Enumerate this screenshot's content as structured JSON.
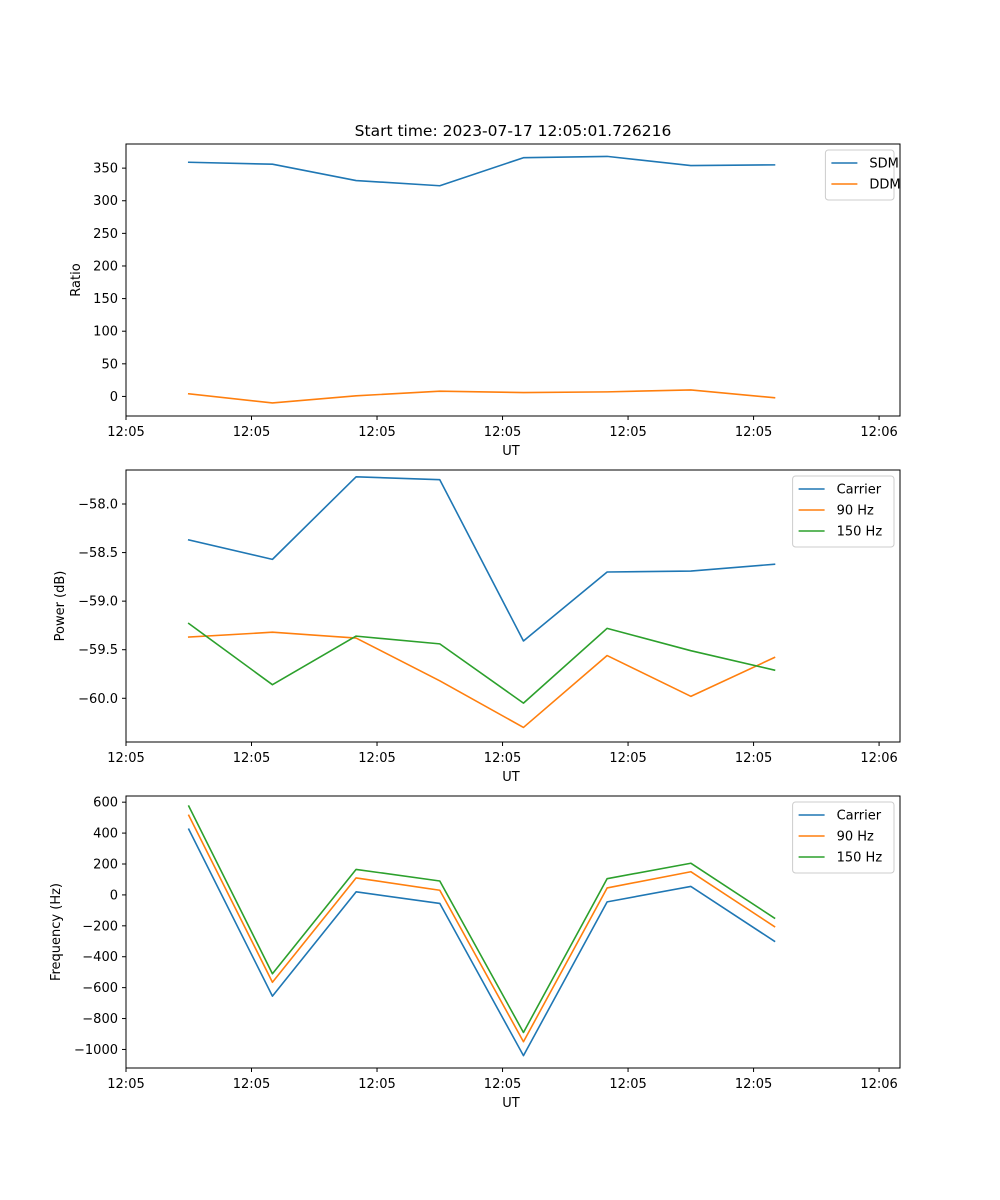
{
  "figure_title": "Start time: 2023-07-17 12:05:01.726216",
  "colors": {
    "c0": "#1f77b4",
    "c1": "#ff7f0e",
    "c2": "#2ca02c"
  },
  "chart_data": [
    {
      "type": "line",
      "title": "Start time: 2023-07-17 12:05:01.726216",
      "xlabel": "UT",
      "ylabel": "Ratio",
      "xlim": [
        -0.75,
        8.5
      ],
      "ylim": [
        -30,
        387
      ],
      "x": [
        0,
        1,
        2,
        3,
        4,
        5,
        6,
        7
      ],
      "xticks": [
        -0.75,
        0.75,
        2.25,
        3.75,
        5.25,
        6.75,
        8.25
      ],
      "xticklabels": [
        "12:05",
        "12:05",
        "12:05",
        "12:05",
        "12:05",
        "12:05",
        "12:06"
      ],
      "yticks": [
        0,
        50,
        100,
        150,
        200,
        250,
        300,
        350
      ],
      "yticklabels": [
        "0",
        "50",
        "100",
        "150",
        "200",
        "250",
        "300",
        "350"
      ],
      "legend_loc": "upper right",
      "grid": false,
      "series": [
        {
          "name": "SDM",
          "color": "#1f77b4",
          "values": [
            359,
            356,
            331,
            323,
            366,
            368,
            354,
            355
          ]
        },
        {
          "name": "DDM",
          "color": "#ff7f0e",
          "values": [
            4,
            -10,
            1,
            8,
            6,
            7,
            10,
            -2
          ]
        }
      ]
    },
    {
      "type": "line",
      "title": "",
      "xlabel": "UT",
      "ylabel": "Power (dB)",
      "xlim": [
        -0.75,
        8.5
      ],
      "ylim": [
        -60.45,
        -57.65
      ],
      "x": [
        0,
        1,
        2,
        3,
        4,
        5,
        6,
        7
      ],
      "xticks": [
        -0.75,
        0.75,
        2.25,
        3.75,
        5.25,
        6.75,
        8.25
      ],
      "xticklabels": [
        "12:05",
        "12:05",
        "12:05",
        "12:05",
        "12:05",
        "12:05",
        "12:06"
      ],
      "yticks": [
        -60.0,
        -59.5,
        -59.0,
        -58.5,
        -58.0
      ],
      "yticklabels": [
        "−60.0",
        "−59.5",
        "−59.0",
        "−58.5",
        "−58.0"
      ],
      "legend_loc": "upper right",
      "grid": false,
      "series": [
        {
          "name": "Carrier",
          "color": "#1f77b4",
          "values": [
            -58.37,
            -58.57,
            -57.72,
            -57.75,
            -59.41,
            -58.7,
            -58.69,
            -58.62
          ]
        },
        {
          "name": "90 Hz",
          "color": "#ff7f0e",
          "values": [
            -59.37,
            -59.32,
            -59.38,
            -59.82,
            -60.3,
            -59.56,
            -59.98,
            -59.58
          ]
        },
        {
          "name": "150 Hz",
          "color": "#2ca02c",
          "values": [
            -59.23,
            -59.86,
            -59.36,
            -59.44,
            -60.05,
            -59.28,
            -59.51,
            -59.71
          ]
        }
      ]
    },
    {
      "type": "line",
      "title": "",
      "xlabel": "UT",
      "ylabel": "Frequency (Hz)",
      "xlim": [
        -0.75,
        8.5
      ],
      "ylim": [
        -1120,
        640
      ],
      "x": [
        0,
        1,
        2,
        3,
        4,
        5,
        6,
        7
      ],
      "xticks": [
        -0.75,
        0.75,
        2.25,
        3.75,
        5.25,
        6.75,
        8.25
      ],
      "xticklabels": [
        "12:05",
        "12:05",
        "12:05",
        "12:05",
        "12:05",
        "12:05",
        "12:06"
      ],
      "yticks": [
        -1000,
        -800,
        -600,
        -400,
        -200,
        0,
        200,
        400,
        600
      ],
      "yticklabels": [
        "−1000",
        "−800",
        "−600",
        "−400",
        "−200",
        "0",
        "200",
        "400",
        "600"
      ],
      "legend_loc": "upper right",
      "grid": false,
      "series": [
        {
          "name": "Carrier",
          "color": "#1f77b4",
          "values": [
            425,
            -655,
            20,
            -55,
            -1040,
            -45,
            55,
            -300
          ]
        },
        {
          "name": "90 Hz",
          "color": "#ff7f0e",
          "values": [
            515,
            -565,
            110,
            30,
            -950,
            45,
            150,
            -205
          ]
        },
        {
          "name": "150 Hz",
          "color": "#2ca02c",
          "values": [
            575,
            -510,
            165,
            90,
            -890,
            105,
            205,
            -150
          ]
        }
      ]
    }
  ]
}
